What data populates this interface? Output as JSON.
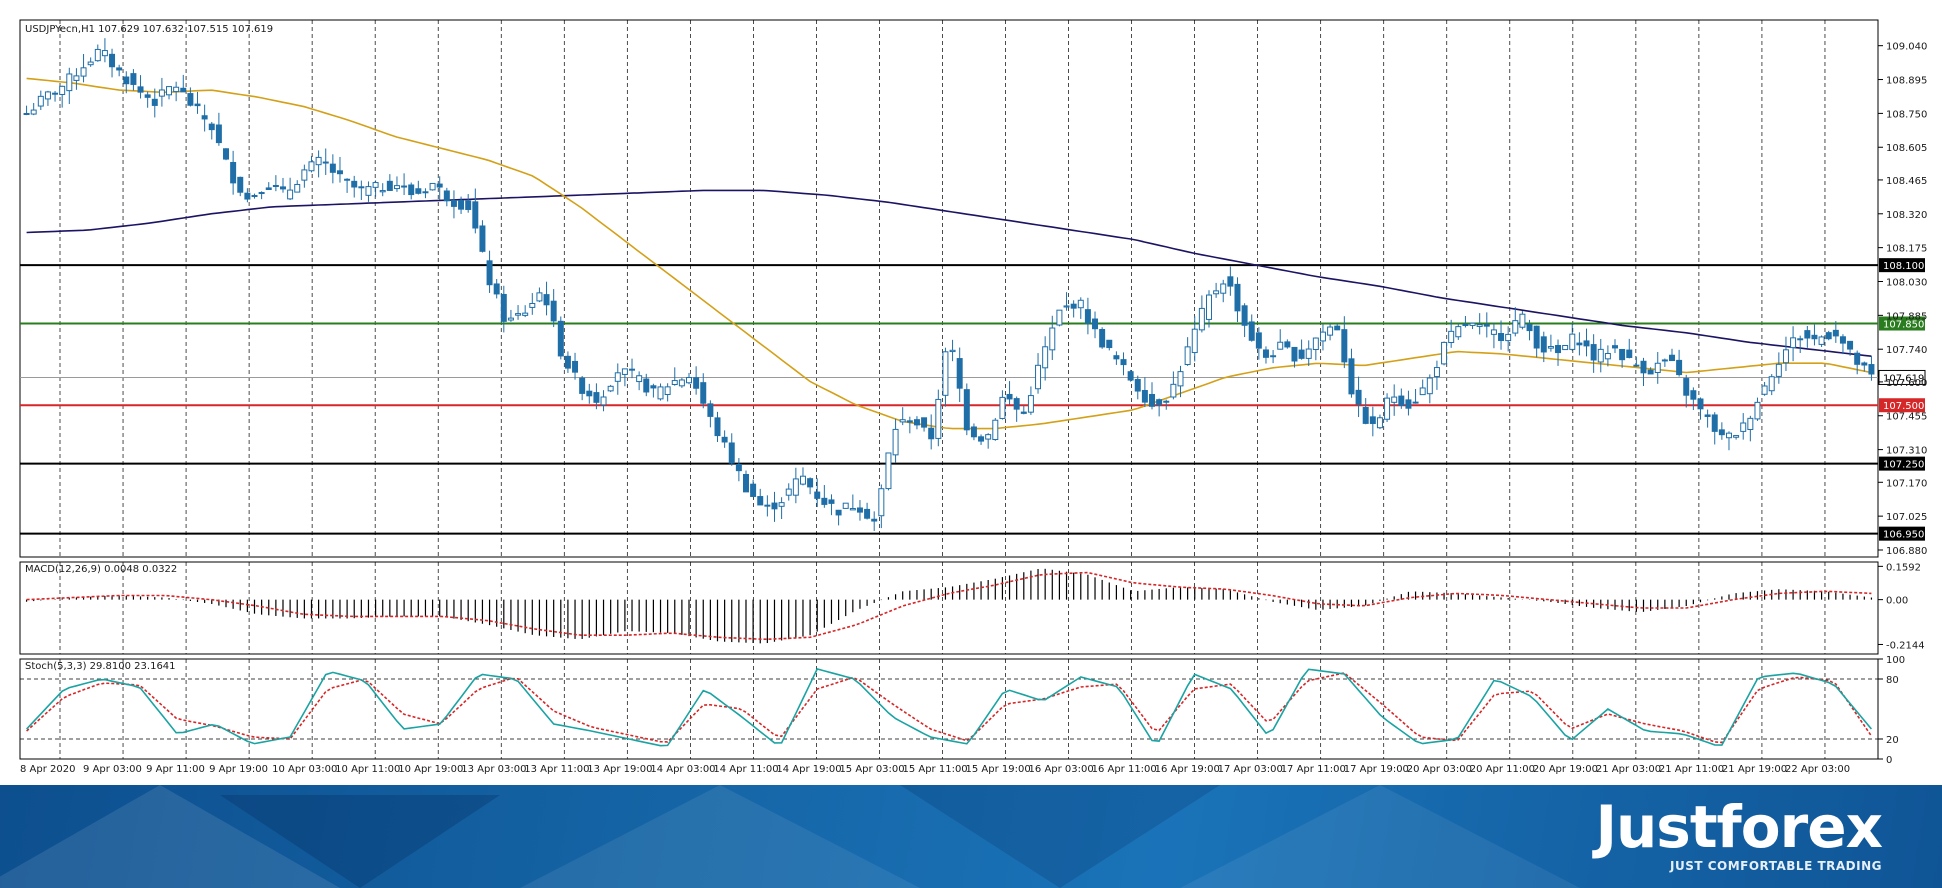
{
  "header": {
    "symbol_line": "USDJPYecn,H1  107.629 107.632 107.515 107.619"
  },
  "macd_label": "MACD(12,26,9) 0.0048 0.0322",
  "stoch_label": "Stoch(5,3,3) 29.8100 23.1641",
  "brand": {
    "name": "Justforex",
    "tagline": "JUST COMFORTABLE TRADING"
  },
  "colors": {
    "candle": "#1f6ea8",
    "ma_fast": "#d4a017",
    "ma_slow": "#1b1464",
    "level_black": "#000000",
    "level_green": "#2a7d1e",
    "level_red": "#d62728",
    "stoch_main": "#1aa3a3",
    "stoch_signal": "#d62728",
    "macd_signal": "#d62728"
  },
  "chart_data": [
    {
      "type": "candlestick",
      "title": "USDJPYecn,H1",
      "ylim": [
        106.85,
        109.15
      ],
      "y_ticks": [
        "109.040",
        "108.895",
        "108.750",
        "108.605",
        "108.465",
        "108.320",
        "108.175",
        "108.030",
        "107.885",
        "107.740",
        "107.600",
        "107.455",
        "107.310",
        "107.170",
        "107.025",
        "106.880"
      ],
      "x_ticks": [
        "8 Apr 2020",
        "9 Apr 03:00",
        "9 Apr 11:00",
        "9 Apr 19:00",
        "10 Apr 03:00",
        "10 Apr 11:00",
        "10 Apr 19:00",
        "13 Apr 03:00",
        "13 Apr 11:00",
        "13 Apr 19:00",
        "14 Apr 03:00",
        "14 Apr 11:00",
        "14 Apr 19:00",
        "15 Apr 03:00",
        "15 Apr 11:00",
        "15 Apr 19:00",
        "16 Apr 03:00",
        "16 Apr 11:00",
        "16 Apr 19:00",
        "17 Apr 03:00",
        "17 Apr 11:00",
        "17 Apr 19:00",
        "20 Apr 03:00",
        "20 Apr 11:00",
        "20 Apr 19:00",
        "21 Apr 03:00",
        "21 Apr 11:00",
        "21 Apr 19:00",
        "22 Apr 03:00"
      ],
      "horizontal_levels": [
        {
          "value": 108.1,
          "label": "108.100",
          "color": "black"
        },
        {
          "value": 107.85,
          "label": "107.850",
          "color": "green"
        },
        {
          "value": 107.619,
          "label": "107.619",
          "color": "current"
        },
        {
          "value": 107.5,
          "label": "107.500",
          "color": "red"
        },
        {
          "value": 107.25,
          "label": "107.250",
          "color": "black"
        },
        {
          "value": 106.95,
          "label": "106.950",
          "color": "black"
        }
      ],
      "price_anchors": [
        108.75,
        108.82,
        108.87,
        108.95,
        109.02,
        108.93,
        108.85,
        108.8,
        108.88,
        108.78,
        108.7,
        108.5,
        108.38,
        108.45,
        108.4,
        108.5,
        108.55,
        108.47,
        108.42,
        108.43,
        108.45,
        108.4,
        108.45,
        108.38,
        108.35,
        108.05,
        107.85,
        107.9,
        108.0,
        107.72,
        107.58,
        107.52,
        107.65,
        107.62,
        107.55,
        107.6,
        107.63,
        107.45,
        107.3,
        107.15,
        107.05,
        107.1,
        107.2,
        107.1,
        107.05,
        107.08,
        107.0,
        107.4,
        107.45,
        107.35,
        107.8,
        107.4,
        107.35,
        107.55,
        107.45,
        107.7,
        107.9,
        107.95,
        107.8,
        107.7,
        107.6,
        107.5,
        107.55,
        107.75,
        107.95,
        108.05,
        107.85,
        107.7,
        107.75,
        107.7,
        107.8,
        107.85,
        107.5,
        107.4,
        107.55,
        107.5,
        107.6,
        107.78,
        107.85,
        107.82,
        107.8,
        107.88,
        107.75,
        107.72,
        107.8,
        107.7,
        107.75,
        107.68,
        107.65,
        107.7,
        107.55,
        107.45,
        107.35,
        107.4,
        107.55,
        107.7,
        107.8,
        107.78,
        107.82,
        107.7,
        107.62
      ],
      "ma_fast_anchors": [
        108.9,
        108.88,
        108.85,
        108.84,
        108.85,
        108.82,
        108.78,
        108.72,
        108.65,
        108.6,
        108.55,
        108.48,
        108.35,
        108.2,
        108.05,
        107.9,
        107.75,
        107.6,
        107.5,
        107.43,
        107.4,
        107.4,
        107.42,
        107.45,
        107.48,
        107.55,
        107.62,
        107.66,
        107.68,
        107.67,
        107.7,
        107.73,
        107.72,
        107.7,
        107.68,
        107.66,
        107.64,
        107.66,
        107.68,
        107.68,
        107.64
      ],
      "ma_slow_anchors": [
        108.24,
        108.25,
        108.28,
        108.32,
        108.35,
        108.36,
        108.37,
        108.38,
        108.39,
        108.4,
        108.41,
        108.42,
        108.42,
        108.4,
        108.37,
        108.33,
        108.29,
        108.25,
        108.21,
        108.15,
        108.1,
        108.05,
        108.01,
        107.96,
        107.92,
        107.88,
        107.84,
        107.81,
        107.77,
        107.74,
        107.71
      ]
    },
    {
      "type": "bar",
      "title": "MACD(12,26,9) 0.0048 0.0322",
      "ylim": [
        -0.26,
        0.18
      ],
      "y_ticks": [
        "0.1592",
        "0.00",
        "-0.2144"
      ],
      "macd_anchors": [
        -0.01,
        0.01,
        0.02,
        0.01,
        -0.02,
        -0.07,
        -0.09,
        -0.09,
        -0.08,
        -0.08,
        -0.12,
        -0.17,
        -0.19,
        -0.15,
        -0.16,
        -0.2,
        -0.21,
        -0.17,
        -0.05,
        0.04,
        0.06,
        0.1,
        0.15,
        0.12,
        0.04,
        0.06,
        0.05,
        -0.01,
        -0.05,
        -0.03,
        0.04,
        0.03,
        0.01,
        -0.01,
        -0.04,
        -0.06,
        -0.03,
        0.03,
        0.05,
        0.04,
        0.01
      ],
      "signal_anchors": [
        0.0,
        0.01,
        0.02,
        0.02,
        0.0,
        -0.03,
        -0.07,
        -0.08,
        -0.08,
        -0.08,
        -0.1,
        -0.14,
        -0.17,
        -0.17,
        -0.16,
        -0.18,
        -0.19,
        -0.18,
        -0.12,
        -0.03,
        0.03,
        0.07,
        0.12,
        0.13,
        0.08,
        0.06,
        0.05,
        0.02,
        -0.02,
        -0.03,
        0.01,
        0.03,
        0.02,
        0.0,
        -0.02,
        -0.04,
        -0.04,
        0.0,
        0.03,
        0.04,
        0.03
      ]
    },
    {
      "type": "line",
      "title": "Stoch(5,3,3) 29.8100 23.1641",
      "ylim": [
        0,
        100
      ],
      "y_ticks": [
        "100",
        "80",
        "20",
        "0"
      ],
      "levels": [
        80,
        20
      ],
      "main_anchors": [
        30,
        70,
        80,
        72,
        25,
        35,
        15,
        22,
        88,
        78,
        30,
        35,
        85,
        80,
        35,
        28,
        20,
        12,
        70,
        42,
        12,
        90,
        80,
        42,
        22,
        15,
        70,
        58,
        82,
        72,
        12,
        85,
        70,
        22,
        90,
        85,
        42,
        15,
        20,
        80,
        62,
        18,
        50,
        28,
        25,
        12,
        82,
        86,
        75,
        30
      ],
      "signal_anchors": [
        28,
        62,
        76,
        74,
        40,
        33,
        22,
        20,
        70,
        80,
        45,
        35,
        70,
        82,
        48,
        32,
        24,
        16,
        55,
        50,
        20,
        70,
        82,
        55,
        30,
        18,
        55,
        60,
        72,
        75,
        25,
        70,
        75,
        35,
        78,
        86,
        55,
        22,
        18,
        65,
        68,
        30,
        45,
        35,
        28,
        15,
        70,
        82,
        78,
        23
      ]
    }
  ]
}
